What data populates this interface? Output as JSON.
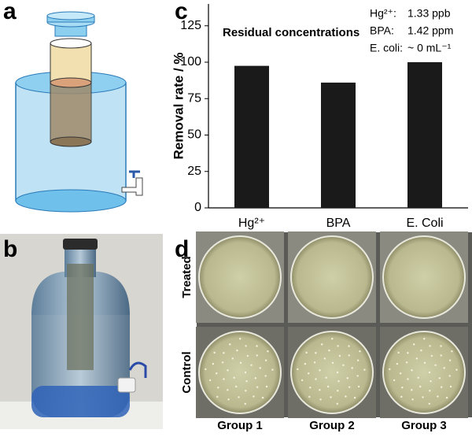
{
  "panels": {
    "a": "a",
    "b": "b",
    "c": "c",
    "d": "d"
  },
  "chart_data": {
    "type": "bar",
    "y_label": "Removal rate / %",
    "categories": [
      "Hg²⁺",
      "BPA",
      "E. Coli"
    ],
    "values": [
      97.5,
      86,
      100
    ],
    "color": "#1a1a1a",
    "ylim": [
      0,
      140
    ],
    "yticks": [
      0,
      25,
      50,
      75,
      100,
      125
    ],
    "annotation": {
      "title": "Residual concentrations",
      "rows": [
        [
          "Hg²⁺:",
          "1.33 ppb"
        ],
        [
          "BPA:",
          "1.42 ppm"
        ],
        [
          "E. coli:",
          "~ 0 mL⁻¹"
        ]
      ]
    }
  },
  "plates": {
    "rows": [
      "Treated",
      "Control"
    ],
    "columns": [
      "Group 1",
      "Group 2",
      "Group 3"
    ]
  }
}
